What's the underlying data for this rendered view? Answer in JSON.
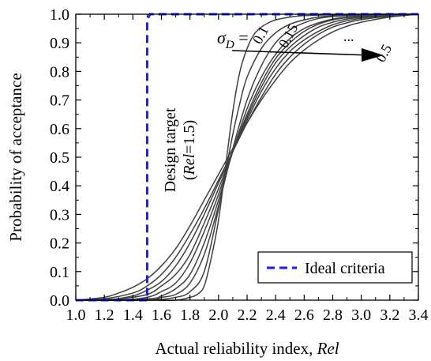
{
  "chart_data": {
    "type": "line",
    "title": "",
    "xlabel": "Actual reliability index, ",
    "xlabel_var": "Rel",
    "ylabel": "Probability of acceptance",
    "xlim": [
      1.0,
      3.4
    ],
    "ylim": [
      0.0,
      1.0
    ],
    "xticks": [
      "1.0",
      "1.2",
      "1.4",
      "1.6",
      "1.8",
      "2.0",
      "2.2",
      "2.4",
      "2.6",
      "2.8",
      "3.0",
      "3.2",
      "3.4"
    ],
    "yticks": [
      "0.0",
      "0.1",
      "0.2",
      "0.3",
      "0.4",
      "0.5",
      "0.6",
      "0.7",
      "0.8",
      "0.9",
      "1.0"
    ],
    "grid": false,
    "legend": {
      "position": "bottom-right",
      "entries": [
        "Ideal criteria"
      ]
    },
    "colors": {
      "ideal": "#1a1aff",
      "curves": "#404040",
      "axis": "#000000"
    },
    "ideal_series": {
      "name": "Ideal criteria",
      "x": [
        1.0,
        1.5,
        1.5,
        1.52,
        3.4
      ],
      "y": [
        0.0,
        0.0,
        0.98,
        1.0,
        1.0
      ]
    },
    "curve_series": [
      {
        "sigma": 0.1,
        "x": [
          1.0,
          1.5,
          1.7,
          1.8,
          1.85,
          1.9,
          1.95,
          2.0,
          2.05,
          2.1,
          2.15,
          2.2,
          2.25,
          2.3,
          2.35,
          2.4,
          2.5,
          2.6,
          2.8,
          3.0,
          3.4
        ],
        "y": [
          0.0,
          0.0,
          0.0,
          0.01,
          0.02,
          0.05,
          0.15,
          0.28,
          0.47,
          0.66,
          0.8,
          0.88,
          0.93,
          0.955,
          0.97,
          0.98,
          0.99,
          0.995,
          0.998,
          1.0,
          1.0
        ]
      },
      {
        "sigma": 0.15,
        "x": [
          1.0,
          1.5,
          1.7,
          1.8,
          1.9,
          2.0,
          2.05,
          2.1,
          2.15,
          2.2,
          2.3,
          2.4,
          2.5,
          2.6,
          2.7,
          2.8,
          3.0,
          3.2,
          3.4
        ],
        "y": [
          0.0,
          0.0,
          0.01,
          0.03,
          0.1,
          0.32,
          0.45,
          0.58,
          0.69,
          0.78,
          0.88,
          0.935,
          0.965,
          0.98,
          0.99,
          0.994,
          0.998,
          1.0,
          1.0
        ]
      },
      {
        "sigma": 0.2,
        "x": [
          1.0,
          1.5,
          1.6,
          1.7,
          1.8,
          1.9,
          2.0,
          2.1,
          2.2,
          2.3,
          2.4,
          2.5,
          2.6,
          2.7,
          2.8,
          2.9,
          3.0,
          3.2,
          3.4
        ],
        "y": [
          0.0,
          0.0,
          0.01,
          0.02,
          0.06,
          0.16,
          0.33,
          0.53,
          0.7,
          0.82,
          0.9,
          0.945,
          0.97,
          0.985,
          0.992,
          0.995,
          0.997,
          0.999,
          1.0
        ]
      },
      {
        "sigma": 0.25,
        "x": [
          1.0,
          1.5,
          1.6,
          1.7,
          1.8,
          1.9,
          2.0,
          2.1,
          2.2,
          2.3,
          2.4,
          2.5,
          2.6,
          2.7,
          2.8,
          2.9,
          3.0,
          3.2,
          3.4
        ],
        "y": [
          0.0,
          0.005,
          0.015,
          0.04,
          0.09,
          0.2,
          0.35,
          0.52,
          0.67,
          0.78,
          0.86,
          0.915,
          0.95,
          0.97,
          0.983,
          0.99,
          0.994,
          0.998,
          1.0
        ]
      },
      {
        "sigma": 0.3,
        "x": [
          1.0,
          1.3,
          1.5,
          1.6,
          1.7,
          1.8,
          1.9,
          2.0,
          2.1,
          2.2,
          2.3,
          2.4,
          2.5,
          2.6,
          2.7,
          2.8,
          2.9,
          3.0,
          3.2,
          3.4
        ],
        "y": [
          0.0,
          0.0,
          0.01,
          0.03,
          0.06,
          0.13,
          0.24,
          0.37,
          0.52,
          0.65,
          0.76,
          0.845,
          0.9,
          0.94,
          0.965,
          0.98,
          0.988,
          0.993,
          0.998,
          1.0
        ]
      },
      {
        "sigma": 0.35,
        "x": [
          1.0,
          1.3,
          1.5,
          1.6,
          1.7,
          1.8,
          1.9,
          2.0,
          2.1,
          2.2,
          2.3,
          2.4,
          2.5,
          2.6,
          2.7,
          2.8,
          2.9,
          3.0,
          3.2,
          3.4
        ],
        "y": [
          0.0,
          0.005,
          0.02,
          0.05,
          0.09,
          0.16,
          0.27,
          0.39,
          0.52,
          0.64,
          0.745,
          0.83,
          0.885,
          0.925,
          0.955,
          0.972,
          0.983,
          0.99,
          0.997,
          1.0
        ]
      },
      {
        "sigma": 0.4,
        "x": [
          1.0,
          1.2,
          1.4,
          1.5,
          1.6,
          1.7,
          1.8,
          1.9,
          2.0,
          2.1,
          2.2,
          2.3,
          2.4,
          2.5,
          2.6,
          2.7,
          2.8,
          2.9,
          3.0,
          3.2,
          3.4
        ],
        "y": [
          0.0,
          0.0,
          0.015,
          0.035,
          0.065,
          0.12,
          0.2,
          0.3,
          0.41,
          0.52,
          0.63,
          0.73,
          0.81,
          0.87,
          0.91,
          0.94,
          0.963,
          0.977,
          0.986,
          0.995,
          1.0
        ]
      },
      {
        "sigma": 0.45,
        "x": [
          1.0,
          1.2,
          1.4,
          1.5,
          1.6,
          1.7,
          1.8,
          1.9,
          2.0,
          2.1,
          2.2,
          2.3,
          2.4,
          2.5,
          2.6,
          2.7,
          2.8,
          2.9,
          3.0,
          3.2,
          3.4
        ],
        "y": [
          0.0,
          0.005,
          0.025,
          0.05,
          0.09,
          0.15,
          0.23,
          0.32,
          0.42,
          0.52,
          0.62,
          0.71,
          0.79,
          0.85,
          0.895,
          0.93,
          0.955,
          0.97,
          0.981,
          0.993,
          1.0
        ]
      },
      {
        "sigma": 0.5,
        "x": [
          1.0,
          1.2,
          1.3,
          1.4,
          1.5,
          1.6,
          1.7,
          1.8,
          1.9,
          2.0,
          2.1,
          2.2,
          2.3,
          2.4,
          2.5,
          2.6,
          2.7,
          2.8,
          2.9,
          3.0,
          3.2,
          3.4
        ],
        "y": [
          0.0,
          0.01,
          0.025,
          0.045,
          0.075,
          0.12,
          0.18,
          0.26,
          0.35,
          0.44,
          0.53,
          0.62,
          0.7,
          0.77,
          0.83,
          0.875,
          0.91,
          0.938,
          0.958,
          0.972,
          0.99,
          1.0
        ]
      }
    ],
    "annotations": {
      "design_target_line1": "Design target",
      "design_target_line2_var": "Rel",
      "design_target_line2_rest": "=1.5)",
      "design_target_open": "(",
      "sigma_symbol": "σ",
      "sigma_sub": "D",
      "sigma_eq": " = ",
      "labels": [
        "0.1",
        "0.15",
        "...",
        "0.5"
      ]
    }
  }
}
